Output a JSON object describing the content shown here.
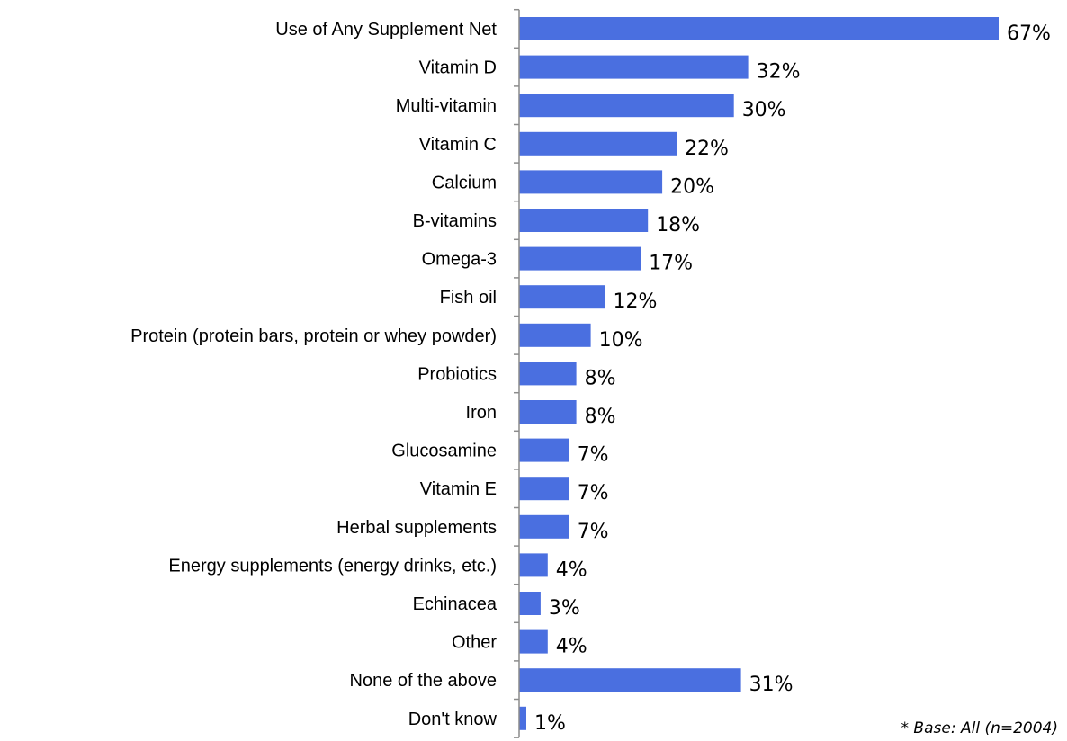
{
  "chart_data": {
    "type": "bar",
    "orientation": "horizontal",
    "categories": [
      "Use of Any Supplement Net",
      "Vitamin D",
      "Multi-vitamin",
      "Vitamin C",
      "Calcium",
      "B-vitamins",
      "Omega-3",
      "Fish oil",
      "Protein (protein bars, protein or whey powder)",
      "Probiotics",
      "Iron",
      "Glucosamine",
      "Vitamin E",
      "Herbal supplements",
      "Energy supplements (energy drinks, etc.)",
      "Echinacea",
      "Other",
      "None of the above",
      "Don't know"
    ],
    "values": [
      67,
      32,
      30,
      22,
      20,
      18,
      17,
      12,
      10,
      8,
      8,
      7,
      7,
      7,
      4,
      3,
      4,
      31,
      1
    ],
    "value_labels": [
      "67%",
      "32%",
      "30%",
      "22%",
      "20%",
      "18%",
      "17%",
      "12%",
      "10%",
      "8%",
      "8%",
      "7%",
      "7%",
      "7%",
      "4%",
      "3%",
      "4%",
      "31%",
      "1%"
    ],
    "xlim": [
      0,
      67
    ],
    "grid": false,
    "bar_color": "#4a6fe0",
    "footnote": "* Base: All (n=2004)"
  }
}
